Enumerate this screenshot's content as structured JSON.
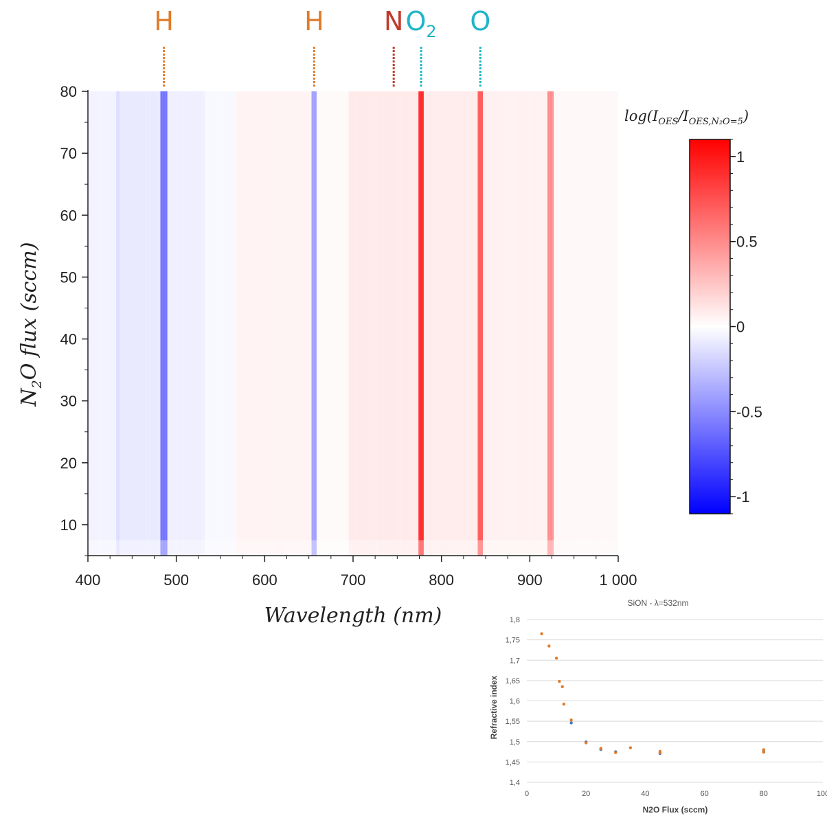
{
  "annotations": [
    {
      "text": "H",
      "wavelength": 486,
      "color": "#e07b2a"
    },
    {
      "text": "H",
      "wavelength": 656,
      "color": "#e07b2a"
    },
    {
      "text": "N",
      "wavelength": 746,
      "color": "#c0392b"
    },
    {
      "text": "O",
      "sub": "2",
      "wavelength": 777,
      "color": "#1fb5c9"
    },
    {
      "text": "O",
      "wavelength": 844,
      "color": "#1fb5c9"
    }
  ],
  "chart_data": [
    {
      "type": "heatmap",
      "xlabel": "Wavelength (nm)",
      "ylabel_parts": {
        "pre": "N",
        "sub": "2",
        "post": "O flux (sccm)"
      },
      "xlim": [
        400,
        1000
      ],
      "ylim": [
        5,
        80
      ],
      "xticks": [
        "400",
        "500",
        "600",
        "700",
        "800",
        "900",
        "1 000"
      ],
      "yticks": [
        "10",
        "20",
        "30",
        "40",
        "50",
        "60",
        "70",
        "80"
      ],
      "colorbar": {
        "label": "log(I_OES/I_OES,N2O=5)",
        "range": [
          -1.1,
          1.1
        ],
        "ticks": [
          "1",
          "0.5",
          "0",
          "-0.5",
          "-1"
        ],
        "colors": {
          "high": "#ff0000",
          "mid": "#ffffff",
          "low": "#0000ff"
        }
      },
      "bands": [
        {
          "from": 400,
          "to": 432,
          "value": -0.05
        },
        {
          "from": 432,
          "to": 436,
          "value": -0.15
        },
        {
          "from": 436,
          "to": 482,
          "value": -0.09
        },
        {
          "from": 482,
          "to": 490,
          "value": -0.6
        },
        {
          "from": 490,
          "to": 532,
          "value": -0.07
        },
        {
          "from": 532,
          "to": 568,
          "value": -0.03
        },
        {
          "from": 568,
          "to": 653,
          "value": 0.05
        },
        {
          "from": 653,
          "to": 659,
          "value": -0.4
        },
        {
          "from": 659,
          "to": 695,
          "value": 0.02
        },
        {
          "from": 695,
          "to": 774,
          "value": 0.09
        },
        {
          "from": 774,
          "to": 780,
          "value": 0.9
        },
        {
          "from": 780,
          "to": 841,
          "value": 0.08
        },
        {
          "from": 841,
          "to": 847,
          "value": 0.7
        },
        {
          "from": 847,
          "to": 920,
          "value": 0.06
        },
        {
          "from": 920,
          "to": 927,
          "value": 0.5
        },
        {
          "from": 927,
          "to": 1000,
          "value": 0.03
        }
      ]
    },
    {
      "type": "scatter",
      "title": "SiON - λ=532nm",
      "xlabel": "N2O Flux (sccm)",
      "ylabel": "Refractive index",
      "xlim": [
        0,
        100
      ],
      "ylim": [
        1.4,
        1.8
      ],
      "xticks": [
        "0",
        "20",
        "40",
        "60",
        "80",
        "100"
      ],
      "yticks": [
        "1,8",
        "1,75",
        "1,7",
        "1,65",
        "1,6",
        "1,55",
        "1,5",
        "1,45",
        "1,4"
      ],
      "series": [
        {
          "color": "#e07b2a",
          "points": [
            [
              5,
              1.765
            ],
            [
              7.5,
              1.735
            ],
            [
              10,
              1.705
            ],
            [
              11,
              1.648
            ],
            [
              12,
              1.635
            ],
            [
              12.5,
              1.592
            ],
            [
              15,
              1.553
            ],
            [
              20,
              1.497
            ],
            [
              25,
              1.483
            ],
            [
              30,
              1.473
            ],
            [
              35,
              1.485
            ],
            [
              45,
              1.473
            ],
            [
              45,
              1.476
            ],
            [
              80,
              1.474
            ],
            [
              80,
              1.48
            ]
          ]
        },
        {
          "color": "#4472c4",
          "points": [
            [
              15,
              1.546
            ],
            [
              20,
              1.499
            ],
            [
              25,
              1.481
            ],
            [
              30,
              1.475
            ],
            [
              45,
              1.471
            ],
            [
              80,
              1.477
            ]
          ]
        }
      ]
    }
  ]
}
